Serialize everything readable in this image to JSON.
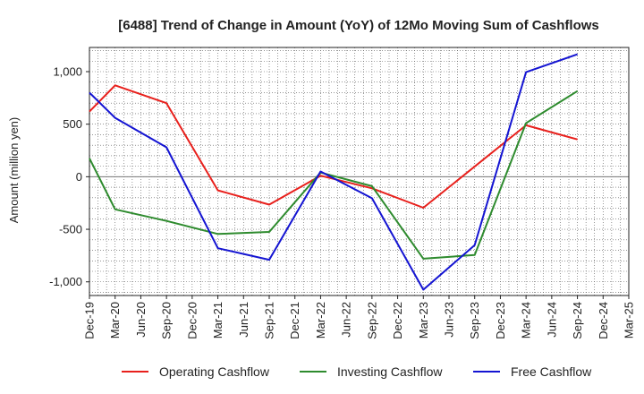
{
  "chart_data": {
    "type": "line",
    "title": "[6488]  Trend of Change in Amount (YoY) of 12Mo Moving Sum of Cashflows",
    "ylabel": "Amount (million yen)",
    "xlabel": "",
    "categories": [
      "Dec-19",
      "Mar-20",
      "Jun-20",
      "Sep-20",
      "Dec-20",
      "Mar-21",
      "Jun-21",
      "Sep-21",
      "Dec-21",
      "Mar-22",
      "Jun-22",
      "Sep-22",
      "Dec-22",
      "Mar-23",
      "Jun-23",
      "Sep-23",
      "Dec-23",
      "Mar-24",
      "Jun-24",
      "Sep-24",
      "Dec-24",
      "Mar-25"
    ],
    "ylim": [
      -1130,
      1230
    ],
    "yticks": [
      -1000,
      -500,
      0,
      500,
      1000
    ],
    "ytick_labels": [
      "-1,000",
      "-500",
      "0",
      "500",
      "1,000"
    ],
    "grid": true,
    "legend_position": "bottom",
    "series": [
      {
        "name": "Operating Cashflow",
        "color": "#e8201c",
        "values": [
          620,
          870,
          null,
          700,
          null,
          -130,
          null,
          -265,
          null,
          10,
          null,
          -110,
          null,
          -295,
          null,
          null,
          null,
          490,
          null,
          355,
          null,
          null
        ]
      },
      {
        "name": "Investing Cashflow",
        "color": "#2e8b2e",
        "values": [
          175,
          -310,
          null,
          -420,
          null,
          -545,
          null,
          -525,
          null,
          40,
          null,
          -90,
          null,
          -780,
          null,
          -745,
          null,
          510,
          null,
          815,
          null,
          null
        ]
      },
      {
        "name": "Free Cashflow",
        "color": "#1414d2",
        "values": [
          800,
          560,
          null,
          280,
          null,
          -680,
          null,
          -790,
          null,
          50,
          null,
          -205,
          null,
          -1075,
          null,
          -650,
          null,
          995,
          null,
          1165,
          null,
          null
        ]
      }
    ]
  }
}
